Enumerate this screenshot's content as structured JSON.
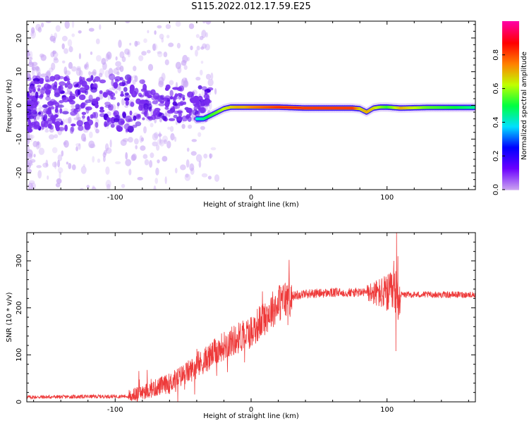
{
  "title": "S115.2022.012.17.59.E25",
  "colors": {
    "snr_line": "#ee3a3a",
    "scatter_purple": "#7a2df0",
    "scatter_faint": "#c9a8f5",
    "colormap": [
      "#c9a0f0",
      "#6a00ff",
      "#0000ff",
      "#00e0ff",
      "#00ff40",
      "#c0ff00",
      "#ff8000",
      "#ff0000",
      "#ff00a0"
    ]
  },
  "chart_data": [
    {
      "type": "heatmap",
      "xlabel": "Height of straight line (km)",
      "ylabel": "Frequency (Hz)",
      "xlim": [
        -165,
        165
      ],
      "ylim": [
        -25,
        25
      ],
      "xticks": [
        "-100",
        "0",
        "100"
      ],
      "xtick_values": [
        -100,
        0,
        100
      ],
      "yticks": [
        "-20",
        "-10",
        "0",
        "10",
        "20"
      ],
      "ytick_values": [
        -20,
        -10,
        0,
        10,
        20
      ],
      "colorbar": {
        "label": "Normalized spectral amplitude",
        "range": [
          0,
          1
        ],
        "ticks": [
          "0.0",
          "0.2",
          "0.4",
          "0.6",
          "0.8"
        ],
        "tick_values": [
          0.0,
          0.2,
          0.4,
          0.6,
          0.8
        ]
      },
      "ridge": {
        "x": [
          -40,
          -35,
          -30,
          -25,
          -20,
          -15,
          -10,
          -5,
          0,
          10,
          20,
          40,
          60,
          75,
          80,
          85,
          90,
          95,
          100,
          110,
          130,
          150,
          165
        ],
        "frequency": [
          -4,
          -4,
          -3,
          -2,
          -1,
          -0.5,
          -0.5,
          -0.5,
          -0.5,
          -0.5,
          -0.5,
          -0.8,
          -0.8,
          -0.8,
          -1,
          -2,
          -0.8,
          -0.5,
          -0.5,
          -0.8,
          -0.6,
          -0.6,
          -0.6
        ],
        "amplitude": [
          0.35,
          0.45,
          0.6,
          0.65,
          0.75,
          0.8,
          0.85,
          0.85,
          0.9,
          0.95,
          1.0,
          1.0,
          1.0,
          1.0,
          0.8,
          0.85,
          0.8,
          0.7,
          0.6,
          0.85,
          0.65,
          0.55,
          0.45
        ]
      },
      "grid": false
    },
    {
      "type": "line",
      "xlabel": "Height of straight line (km)",
      "ylabel": "SNR (10 * v/v)",
      "xlim": [
        -165,
        165
      ],
      "ylim": [
        0,
        360
      ],
      "xticks": [
        "-100",
        "0",
        "100"
      ],
      "xtick_values": [
        -100,
        0,
        100
      ],
      "yticks": [
        "0",
        "100",
        "200",
        "300"
      ],
      "ytick_values": [
        0,
        100,
        200,
        300
      ],
      "trend": {
        "x": [
          -165,
          -90,
          -80,
          -60,
          -40,
          -20,
          0,
          20,
          30,
          40,
          60,
          80,
          90,
          100,
          110,
          130,
          165
        ],
        "y": [
          10,
          12,
          20,
          40,
          75,
          120,
          150,
          210,
          225,
          230,
          232,
          233,
          232,
          230,
          228,
          228,
          228
        ]
      },
      "spikes": {
        "x": [
          105,
          106.5,
          107,
          108
        ],
        "y": [
          300,
          108,
          360,
          310
        ]
      },
      "grid": false
    }
  ]
}
